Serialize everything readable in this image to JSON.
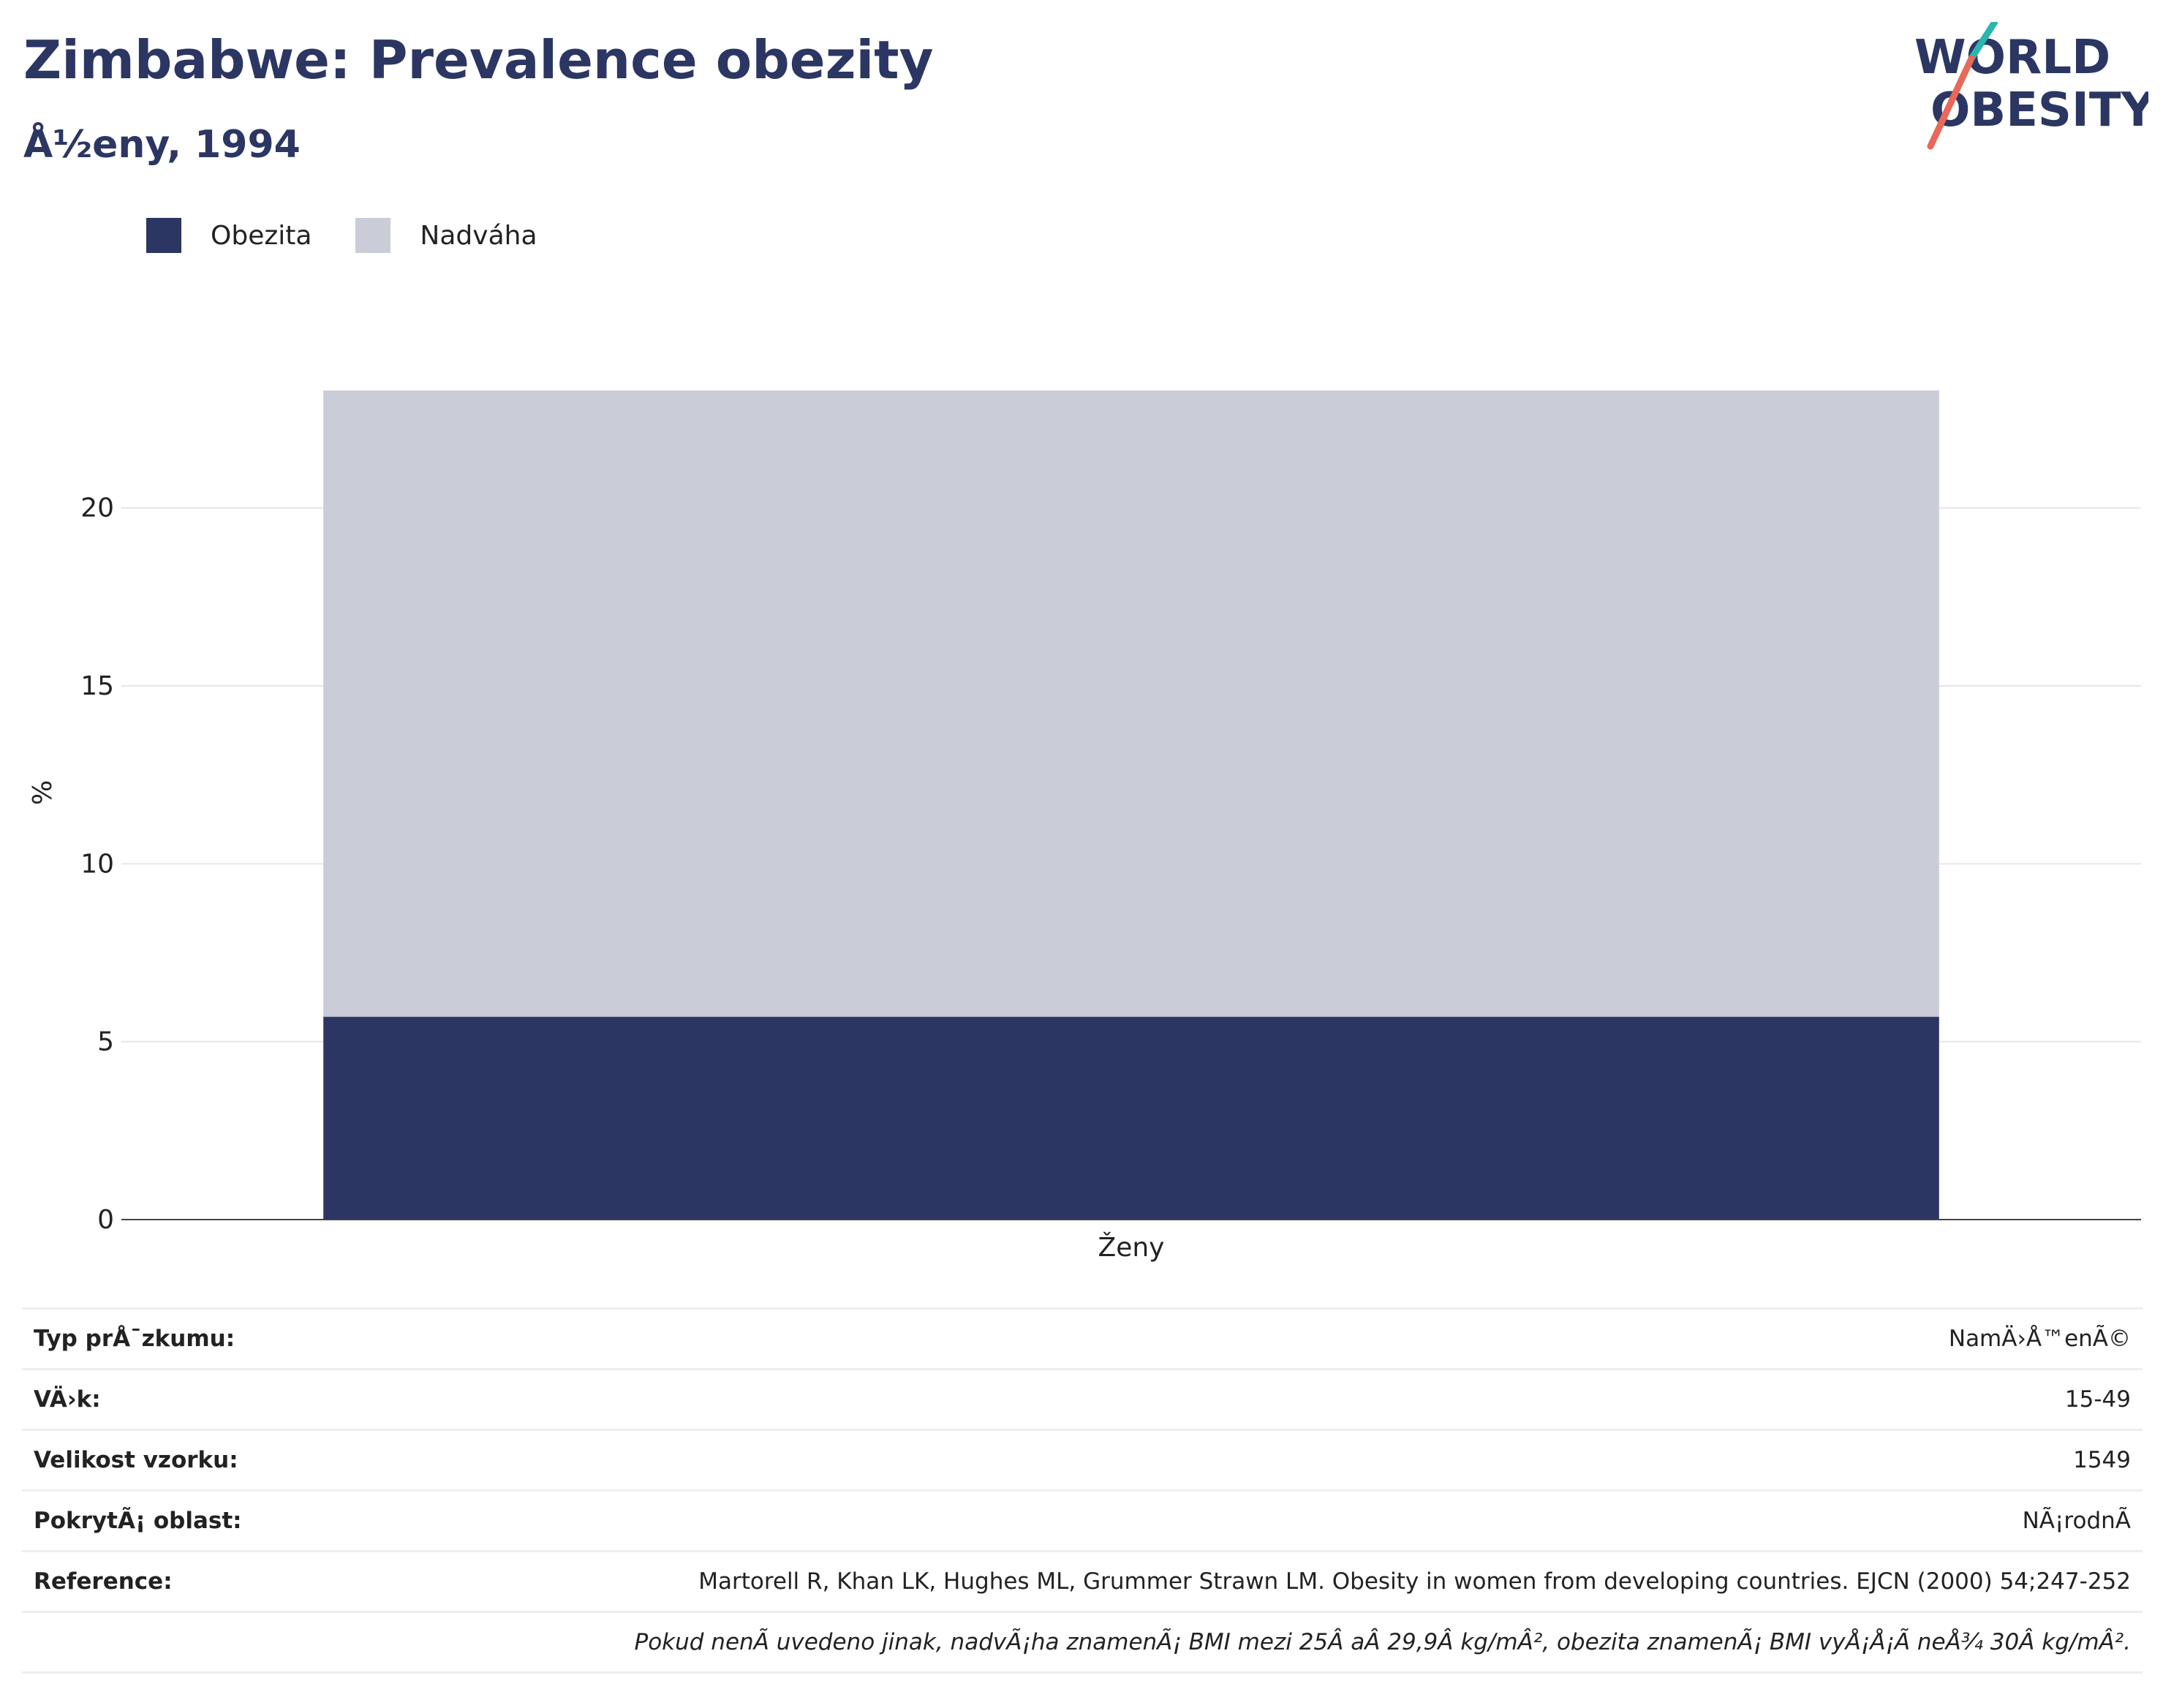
{
  "header": {
    "title": "Zimbabwe: Prevalence obezity",
    "subtitle": "Å½eny, 1994"
  },
  "logo": {
    "line1": "WORLD",
    "line2": "OBESITY",
    "accent": "#e8685a",
    "accent2": "#2bb5ad"
  },
  "legend": [
    {
      "label": "Obezita",
      "color": "#2b3663"
    },
    {
      "label": "Nadváha",
      "color": "#cacdd8"
    }
  ],
  "chart_data": {
    "type": "bar",
    "stacked": true,
    "categories": [
      "Ženy"
    ],
    "series": [
      {
        "name": "Obezita",
        "values": [
          5.7
        ],
        "color": "#2b3663"
      },
      {
        "name": "Nadváha",
        "values": [
          17.6
        ],
        "color": "#cacdd8"
      }
    ],
    "ylabel": "%",
    "ylim": [
      0,
      24
    ],
    "yticks": [
      0,
      5,
      10,
      15,
      20
    ],
    "grid": true,
    "legend_position": "top-left"
  },
  "info": [
    {
      "key": "Typ prÅ¯zkumu:",
      "value": "NamÄ›Å™enÃ©"
    },
    {
      "key": "VÄ›k:",
      "value": "15-49"
    },
    {
      "key": "Velikost vzorku:",
      "value": "1549"
    },
    {
      "key": "PokrytÃ¡ oblast:",
      "value": "NÃ¡rodnÃ"
    },
    {
      "key": "Reference:",
      "value": "Martorell R, Khan LK, Hughes ML, Grummer Strawn LM. Obesity in women from developing countries. EJCN (2000) 54;247-252"
    }
  ],
  "note": "Pokud nenÃ uvedeno jinak, nadvÃ¡ha znamenÃ¡ BMI mezi 25Â aÂ 29,9Â kg/mÂ², obezita znamenÃ¡ BMI vyÅ¡Å¡Ã neÅ¾ 30Â kg/mÂ²."
}
